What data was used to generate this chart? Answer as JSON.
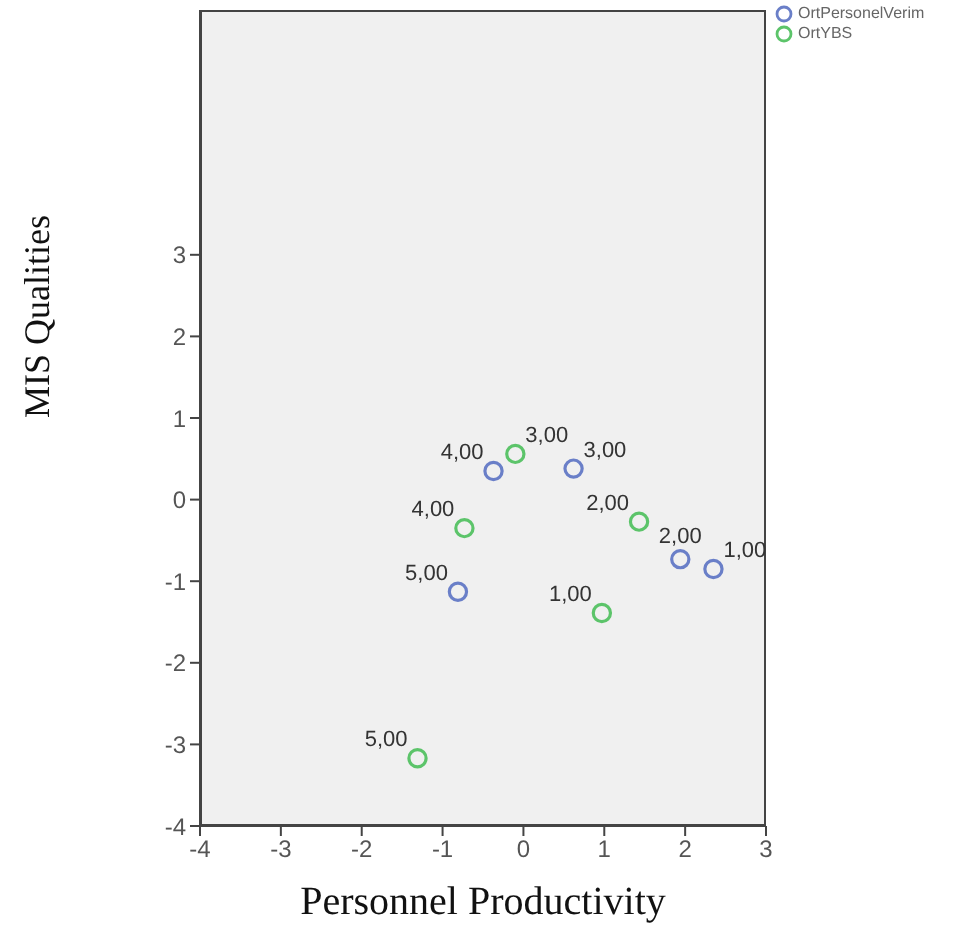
{
  "chart_data": {
    "type": "scatter",
    "xlabel": "Personnel Productivity",
    "ylabel": "MIS Qualities",
    "xlim": [
      -4,
      3
    ],
    "ylim": [
      -4,
      6
    ],
    "xticks": [
      -4,
      -3,
      -2,
      -1,
      0,
      1,
      2,
      3
    ],
    "yticks": [
      -4,
      -3,
      -2,
      -1,
      0,
      1,
      2,
      3
    ],
    "grid": false,
    "legend": "top right",
    "marker": "circle",
    "series": [
      {
        "name": "OrtPersonelVerim",
        "color": "#6a7fc8",
        "x": [
          2.35,
          1.94,
          0.62,
          -0.37,
          -0.81
        ],
        "values": [
          -0.85,
          -0.73,
          0.38,
          0.35,
          -1.13
        ]
      },
      {
        "name": "OrtYBS",
        "color": "#5cc46a",
        "x": [
          0.97,
          1.43,
          -0.1,
          -0.73,
          -1.31
        ],
        "values": [
          -1.39,
          -0.27,
          0.56,
          -0.35,
          -3.17
        ]
      }
    ],
    "annotations": [
      {
        "text": "1,00",
        "x": 2.35,
        "y": -0.85
      },
      {
        "text": "2,00",
        "x": 1.94,
        "y": -0.73
      },
      {
        "text": "3,00",
        "x": 0.62,
        "y": 0.38
      },
      {
        "text": "4,00",
        "x": -0.37,
        "y": 0.35
      },
      {
        "text": "5,00",
        "x": -0.81,
        "y": -1.13
      },
      {
        "text": "1,00",
        "x": 0.97,
        "y": -1.39
      },
      {
        "text": "2,00",
        "x": 1.43,
        "y": -0.27
      },
      {
        "text": "3,00",
        "x": -0.1,
        "y": 0.56
      },
      {
        "text": "4,00",
        "x": -0.73,
        "y": -0.35
      },
      {
        "text": "5,00",
        "x": -1.31,
        "y": -3.17
      }
    ]
  }
}
